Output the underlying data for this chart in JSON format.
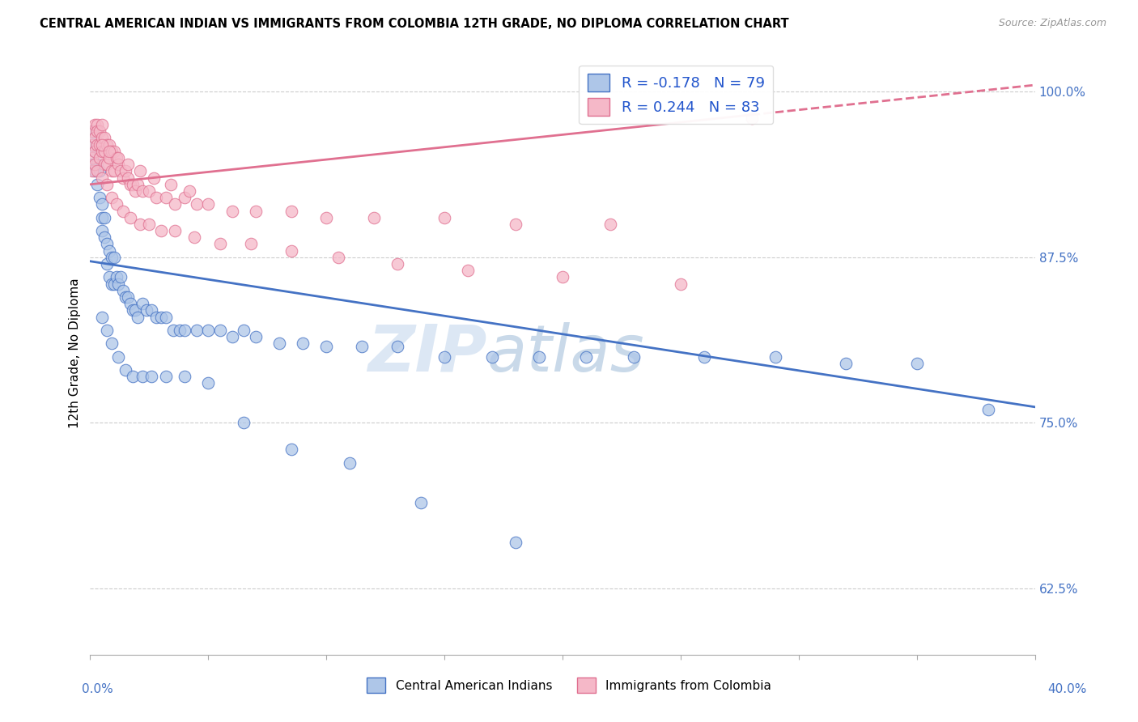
{
  "title": "CENTRAL AMERICAN INDIAN VS IMMIGRANTS FROM COLOMBIA 12TH GRADE, NO DIPLOMA CORRELATION CHART",
  "source": "Source: ZipAtlas.com",
  "ylabel": "12th Grade, No Diploma",
  "xmin": 0.0,
  "xmax": 0.4,
  "ymin": 0.575,
  "ymax": 1.03,
  "blue_color": "#aec6e8",
  "pink_color": "#f5b8c8",
  "blue_line_color": "#4472c4",
  "pink_line_color": "#e07090",
  "watermark_color": "#d0dff0",
  "blue_line_x0": 0.0,
  "blue_line_y0": 0.872,
  "blue_line_x1": 0.4,
  "blue_line_y1": 0.762,
  "pink_line_x0": 0.0,
  "pink_line_y0": 0.93,
  "pink_line_x1": 0.4,
  "pink_line_y1": 1.005,
  "blue_x": [
    0.001,
    0.001,
    0.001,
    0.002,
    0.002,
    0.002,
    0.003,
    0.003,
    0.004,
    0.004,
    0.005,
    0.005,
    0.005,
    0.006,
    0.006,
    0.007,
    0.007,
    0.008,
    0.008,
    0.009,
    0.009,
    0.01,
    0.01,
    0.011,
    0.012,
    0.013,
    0.014,
    0.015,
    0.016,
    0.017,
    0.018,
    0.019,
    0.02,
    0.022,
    0.024,
    0.026,
    0.028,
    0.03,
    0.032,
    0.035,
    0.038,
    0.04,
    0.045,
    0.05,
    0.055,
    0.06,
    0.065,
    0.07,
    0.08,
    0.09,
    0.1,
    0.115,
    0.13,
    0.15,
    0.17,
    0.19,
    0.21,
    0.23,
    0.26,
    0.29,
    0.32,
    0.35,
    0.38,
    0.005,
    0.007,
    0.009,
    0.012,
    0.015,
    0.018,
    0.022,
    0.026,
    0.032,
    0.04,
    0.05,
    0.065,
    0.085,
    0.11,
    0.14,
    0.18
  ],
  "blue_y": [
    0.97,
    0.96,
    0.945,
    0.965,
    0.955,
    0.94,
    0.93,
    0.945,
    0.94,
    0.92,
    0.915,
    0.905,
    0.895,
    0.905,
    0.89,
    0.885,
    0.87,
    0.88,
    0.86,
    0.875,
    0.855,
    0.875,
    0.855,
    0.86,
    0.855,
    0.86,
    0.85,
    0.845,
    0.845,
    0.84,
    0.835,
    0.835,
    0.83,
    0.84,
    0.835,
    0.835,
    0.83,
    0.83,
    0.83,
    0.82,
    0.82,
    0.82,
    0.82,
    0.82,
    0.82,
    0.815,
    0.82,
    0.815,
    0.81,
    0.81,
    0.808,
    0.808,
    0.808,
    0.8,
    0.8,
    0.8,
    0.8,
    0.8,
    0.8,
    0.8,
    0.795,
    0.795,
    0.76,
    0.83,
    0.82,
    0.81,
    0.8,
    0.79,
    0.785,
    0.785,
    0.785,
    0.785,
    0.785,
    0.78,
    0.75,
    0.73,
    0.72,
    0.69,
    0.66
  ],
  "pink_x": [
    0.001,
    0.001,
    0.001,
    0.001,
    0.002,
    0.002,
    0.002,
    0.002,
    0.003,
    0.003,
    0.003,
    0.004,
    0.004,
    0.004,
    0.005,
    0.005,
    0.005,
    0.006,
    0.006,
    0.006,
    0.007,
    0.007,
    0.008,
    0.008,
    0.009,
    0.009,
    0.01,
    0.01,
    0.011,
    0.012,
    0.013,
    0.014,
    0.015,
    0.016,
    0.017,
    0.018,
    0.019,
    0.02,
    0.022,
    0.025,
    0.028,
    0.032,
    0.036,
    0.04,
    0.045,
    0.05,
    0.06,
    0.07,
    0.085,
    0.1,
    0.12,
    0.15,
    0.18,
    0.22,
    0.28,
    0.003,
    0.005,
    0.007,
    0.009,
    0.011,
    0.014,
    0.017,
    0.021,
    0.025,
    0.03,
    0.036,
    0.044,
    0.055,
    0.068,
    0.085,
    0.105,
    0.13,
    0.16,
    0.2,
    0.25,
    0.005,
    0.008,
    0.012,
    0.016,
    0.021,
    0.027,
    0.034,
    0.042
  ],
  "pink_y": [
    0.97,
    0.96,
    0.95,
    0.94,
    0.975,
    0.965,
    0.955,
    0.945,
    0.975,
    0.97,
    0.96,
    0.97,
    0.96,
    0.95,
    0.975,
    0.965,
    0.955,
    0.965,
    0.955,
    0.945,
    0.96,
    0.945,
    0.96,
    0.95,
    0.955,
    0.94,
    0.955,
    0.94,
    0.95,
    0.945,
    0.94,
    0.935,
    0.94,
    0.935,
    0.93,
    0.93,
    0.925,
    0.93,
    0.925,
    0.925,
    0.92,
    0.92,
    0.915,
    0.92,
    0.915,
    0.915,
    0.91,
    0.91,
    0.91,
    0.905,
    0.905,
    0.905,
    0.9,
    0.9,
    0.98,
    0.94,
    0.935,
    0.93,
    0.92,
    0.915,
    0.91,
    0.905,
    0.9,
    0.9,
    0.895,
    0.895,
    0.89,
    0.885,
    0.885,
    0.88,
    0.875,
    0.87,
    0.865,
    0.86,
    0.855,
    0.96,
    0.955,
    0.95,
    0.945,
    0.94,
    0.935,
    0.93,
    0.925
  ]
}
